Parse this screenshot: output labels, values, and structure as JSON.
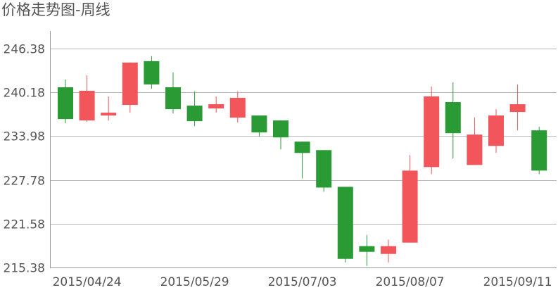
{
  "chart_data": {
    "type": "candlestick",
    "title": "价格走势图-周线",
    "ylim": [
      215.38,
      246.38
    ],
    "y_ticks": [
      "246.38",
      "240.18",
      "233.98",
      "227.78",
      "221.58",
      "215.38"
    ],
    "x_tick_labels": [
      {
        "label": "2015/04/24",
        "index": 1
      },
      {
        "label": "2015/05/29",
        "index": 6
      },
      {
        "label": "2015/07/03",
        "index": 11
      },
      {
        "label": "2015/08/07",
        "index": 16
      },
      {
        "label": "2015/09/11",
        "index": 21
      }
    ],
    "grid": true,
    "colors": {
      "down": "#2a9a35",
      "up": "#f2555a"
    },
    "candles": [
      {
        "open": 240.9,
        "close": 236.4,
        "high": 242.0,
        "low": 235.8
      },
      {
        "open": 236.2,
        "close": 240.4,
        "high": 242.6,
        "low": 236.0
      },
      {
        "open": 236.9,
        "close": 237.3,
        "high": 239.6,
        "low": 236.2
      },
      {
        "open": 238.4,
        "close": 244.4,
        "high": 244.4,
        "low": 237.3
      },
      {
        "open": 244.6,
        "close": 241.3,
        "high": 245.3,
        "low": 240.7
      },
      {
        "open": 240.9,
        "close": 237.8,
        "high": 243.0,
        "low": 237.2
      },
      {
        "open": 238.3,
        "close": 236.1,
        "high": 240.3,
        "low": 235.4
      },
      {
        "open": 237.9,
        "close": 238.5,
        "high": 239.6,
        "low": 237.3
      },
      {
        "open": 236.6,
        "close": 239.4,
        "high": 240.3,
        "low": 235.9
      },
      {
        "open": 236.9,
        "close": 234.5,
        "high": 236.9,
        "low": 233.9
      },
      {
        "open": 236.2,
        "close": 233.8,
        "high": 236.2,
        "low": 232.1
      },
      {
        "open": 233.2,
        "close": 231.6,
        "high": 233.2,
        "low": 228.0
      },
      {
        "open": 232.0,
        "close": 226.7,
        "high": 232.0,
        "low": 226.1
      },
      {
        "open": 226.8,
        "close": 216.6,
        "high": 226.8,
        "low": 216.1
      },
      {
        "open": 218.4,
        "close": 217.6,
        "high": 220.0,
        "low": 215.6
      },
      {
        "open": 217.3,
        "close": 218.4,
        "high": 219.3,
        "low": 216.1
      },
      {
        "open": 218.9,
        "close": 229.1,
        "high": 231.3,
        "low": 218.9
      },
      {
        "open": 229.6,
        "close": 239.6,
        "high": 241.0,
        "low": 228.6
      },
      {
        "open": 238.8,
        "close": 234.4,
        "high": 241.6,
        "low": 230.8
      },
      {
        "open": 229.9,
        "close": 234.2,
        "high": 236.6,
        "low": 229.9
      },
      {
        "open": 232.6,
        "close": 236.9,
        "high": 237.8,
        "low": 231.6
      },
      {
        "open": 237.4,
        "close": 238.5,
        "high": 241.3,
        "low": 234.8
      },
      {
        "open": 234.8,
        "close": 229.1,
        "high": 235.3,
        "low": 228.6
      }
    ]
  }
}
